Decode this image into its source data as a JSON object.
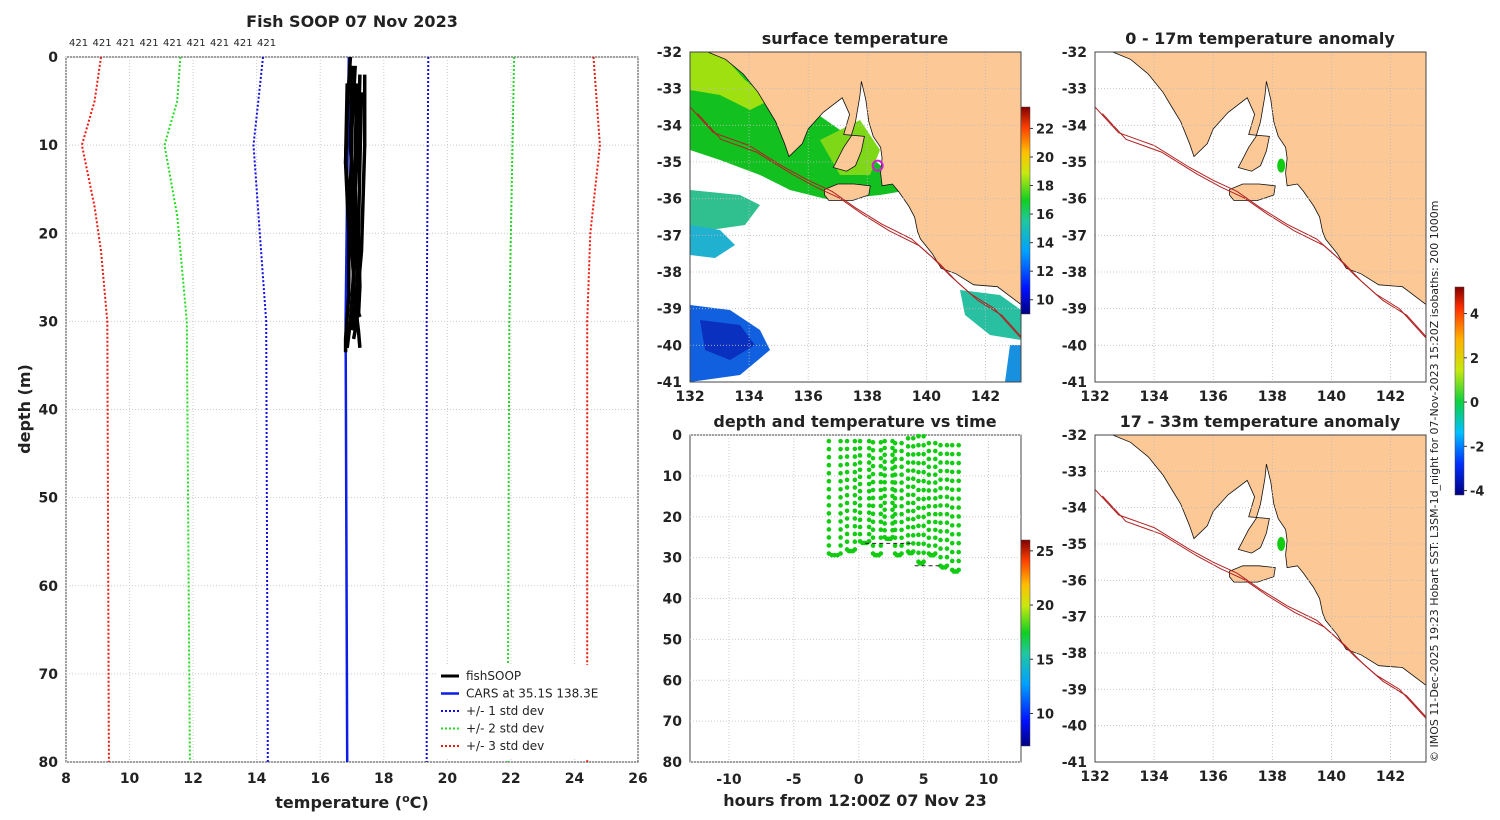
{
  "colors": {
    "land": "#fcc896",
    "mean": "#0a1ee6",
    "sd1": "#1010e0",
    "sd2": "#22dd22",
    "sd3": "#ee1a10",
    "obs": "#000000",
    "points": "#11cc11",
    "isobath": "#b22222"
  },
  "chart_data": [
    {
      "id": "profile",
      "type": "line",
      "title": "Fish SOOP 07 Nov 2023",
      "xlabel": "temperature (°C)",
      "xlabel_main": "temperature (",
      "xlabel_sup": "o",
      "xlabel_tail": "C)",
      "ylabel": "depth (m)",
      "xlim": [
        8,
        26
      ],
      "ylim": [
        80,
        0
      ],
      "xticks": [
        8,
        10,
        12,
        14,
        16,
        18,
        20,
        22,
        24,
        26
      ],
      "yticks": [
        0,
        10,
        20,
        30,
        40,
        50,
        60,
        70,
        80
      ],
      "top_annotations": [
        "421",
        "421",
        "421",
        "421",
        "421",
        "421",
        "421",
        "421",
        "421"
      ],
      "legend": [
        "fishSOOP",
        "CARS at 35.1S 138.3E",
        "+/- 1 std dev",
        "+/- 2 std dev",
        "+/- 3 std dev"
      ],
      "legend_location": "bottom-right",
      "series": [
        {
          "name": "CARS at 35.1S 138.3E",
          "style": "mean",
          "points": [
            [
              16.9,
              0
            ],
            [
              16.8,
              30
            ],
            [
              16.85,
              80
            ]
          ]
        },
        {
          "name": "+/- 1 std dev (low)",
          "style": "sd1",
          "points": [
            [
              14.2,
              0
            ],
            [
              14.05,
              5
            ],
            [
              13.9,
              10
            ],
            [
              14.1,
              20
            ],
            [
              14.3,
              30
            ],
            [
              14.35,
              80
            ]
          ]
        },
        {
          "name": "+/- 1 std dev (high)",
          "style": "sd1",
          "points": [
            [
              19.4,
              0
            ],
            [
              19.35,
              30
            ],
            [
              19.35,
              80
            ]
          ]
        },
        {
          "name": "+/- 2 std dev (low)",
          "style": "sd2",
          "points": [
            [
              11.6,
              0
            ],
            [
              11.5,
              5
            ],
            [
              11.1,
              10
            ],
            [
              11.5,
              18
            ],
            [
              11.8,
              30
            ],
            [
              11.9,
              80
            ]
          ]
        },
        {
          "name": "+/- 2 std dev (high)",
          "style": "sd2",
          "points": [
            [
              22.1,
              0
            ],
            [
              22.05,
              10
            ],
            [
              21.95,
              30
            ],
            [
              21.9,
              80
            ]
          ]
        },
        {
          "name": "+/- 3 std dev (low)",
          "style": "sd3",
          "points": [
            [
              9.1,
              0
            ],
            [
              8.9,
              5
            ],
            [
              8.5,
              10
            ],
            [
              8.9,
              17
            ],
            [
              9.1,
              22
            ],
            [
              9.3,
              30
            ],
            [
              9.35,
              80
            ]
          ]
        },
        {
          "name": "+/- 3 std dev (high)",
          "style": "sd3",
          "points": [
            [
              24.6,
              0
            ],
            [
              24.7,
              5
            ],
            [
              24.8,
              10
            ],
            [
              24.5,
              20
            ],
            [
              24.4,
              30
            ],
            [
              24.4,
              80
            ]
          ]
        },
        {
          "name": "fishSOOP",
          "style": "obs",
          "points": [
            [
              17.1,
              1
            ],
            [
              17.0,
              8
            ],
            [
              16.95,
              15
            ],
            [
              17.0,
              22
            ],
            [
              17.1,
              28
            ],
            [
              17.2,
              31
            ],
            [
              17.25,
              33
            ]
          ]
        },
        {
          "name": "fishSOOP",
          "style": "obs",
          "points": [
            [
              16.95,
              0
            ],
            [
              16.85,
              6
            ],
            [
              16.8,
              12
            ],
            [
              16.9,
              20
            ],
            [
              16.9,
              27
            ],
            [
              16.8,
              32
            ],
            [
              16.8,
              33.5
            ]
          ]
        },
        {
          "name": "fishSOOP",
          "style": "obs",
          "points": [
            [
              17.25,
              2
            ],
            [
              17.2,
              9
            ],
            [
              17.1,
              15
            ],
            [
              17.15,
              22
            ],
            [
              17.2,
              27
            ],
            [
              17.15,
              30
            ],
            [
              17.05,
              32
            ]
          ]
        },
        {
          "name": "fishSOOP",
          "style": "obs",
          "points": [
            [
              17.4,
              2
            ],
            [
              17.4,
              10
            ],
            [
              17.35,
              16
            ],
            [
              17.3,
              22
            ],
            [
              17.2,
              26
            ],
            [
              17.1,
              29
            ],
            [
              17.0,
              31
            ]
          ]
        },
        {
          "name": "fishSOOP",
          "style": "obs",
          "points": [
            [
              16.85,
              3
            ],
            [
              16.8,
              12
            ],
            [
              16.95,
              18
            ],
            [
              17.05,
              25
            ],
            [
              16.95,
              30
            ],
            [
              16.85,
              33
            ]
          ]
        },
        {
          "name": "fishSOOP",
          "style": "obs",
          "points": [
            [
              17.3,
              4
            ],
            [
              17.25,
              12
            ],
            [
              17.2,
              20
            ],
            [
              17.25,
              26
            ],
            [
              17.2,
              29.5
            ]
          ]
        },
        {
          "name": "fishSOOP",
          "style": "obs",
          "points": [
            [
              17.0,
              1
            ],
            [
              16.95,
              10
            ],
            [
              17.05,
              17
            ],
            [
              17.15,
              24
            ],
            [
              17.2,
              29
            ],
            [
              17.25,
              29.5
            ]
          ]
        },
        {
          "name": "fishSOOP",
          "style": "obs",
          "points": [
            [
              17.15,
              3
            ],
            [
              17.1,
              11
            ],
            [
              17.0,
              19
            ],
            [
              17.05,
              24
            ],
            [
              17.0,
              28
            ],
            [
              17.05,
              31
            ]
          ]
        }
      ]
    },
    {
      "id": "surface_map",
      "type": "heatmap",
      "title": "surface temperature",
      "xlim": [
        132,
        143.2
      ],
      "ylim": [
        -41,
        -32
      ],
      "xticks": [
        132,
        134,
        136,
        138,
        140,
        142
      ],
      "yticks": [
        -32,
        -33,
        -34,
        -35,
        -36,
        -37,
        -38,
        -39,
        -40,
        -41
      ],
      "colorbar": {
        "range": [
          9,
          23.5
        ],
        "ticks": [
          10,
          12,
          14,
          16,
          18,
          20,
          22
        ],
        "scheme": "jet"
      },
      "marker": {
        "lon": 138.35,
        "lat": -35.1
      }
    },
    {
      "id": "anom_top",
      "type": "heatmap",
      "title": "0 - 17m temperature anomaly",
      "xlim": [
        132,
        143.2
      ],
      "ylim": [
        -41,
        -32
      ],
      "xticks": [
        132,
        134,
        136,
        138,
        140,
        142
      ],
      "yticks": [
        -32,
        -33,
        -34,
        -35,
        -36,
        -37,
        -38,
        -39,
        -40,
        -41
      ],
      "marker": {
        "lon": 138.3,
        "lat": -35.1
      }
    },
    {
      "id": "anom_bottom",
      "type": "heatmap",
      "title": "17 - 33m temperature anomaly",
      "xlim": [
        132,
        143.2
      ],
      "ylim": [
        -41,
        -32
      ],
      "xticks": [
        132,
        134,
        136,
        138,
        140,
        142
      ],
      "yticks": [
        -32,
        -33,
        -34,
        -35,
        -36,
        -37,
        -38,
        -39,
        -40,
        -41
      ],
      "marker": {
        "lon": 138.3,
        "lat": -35.0
      },
      "colorbar": {
        "range": [
          -4.2,
          5.2
        ],
        "ticks": [
          -4,
          -2,
          0,
          2,
          4
        ],
        "scheme": "jet"
      }
    },
    {
      "id": "depth_time",
      "type": "scatter",
      "title": "depth and temperature vs time",
      "xlabel": "hours from 12:00Z 07 Nov 23",
      "xlim": [
        -13,
        12.5
      ],
      "ylim": [
        80,
        0
      ],
      "xticks": [
        -10,
        -5,
        0,
        5,
        10
      ],
      "yticks": [
        0,
        10,
        20,
        30,
        40,
        50,
        60,
        70,
        80
      ],
      "colorbar": {
        "range": [
          7,
          26
        ],
        "ticks": [
          10,
          15,
          20,
          25
        ],
        "scheme": "jet"
      },
      "casts": [
        {
          "t": -2.3,
          "tb": -1.4,
          "surf": 1.5,
          "bottom": 29
        },
        {
          "t": -0.9,
          "tb": -0.3,
          "surf": 1.5,
          "bottom": 28
        },
        {
          "t": 0.1,
          "tb": 0.8,
          "surf": 1.5,
          "bottom": 26
        },
        {
          "t": 1.1,
          "tb": 1.7,
          "surf": 1.8,
          "bottom": 29
        },
        {
          "t": 2.0,
          "tb": 2.6,
          "surf": 1.5,
          "bottom": 25
        },
        {
          "t": 2.8,
          "tb": 3.3,
          "surf": 2.0,
          "bottom": 29
        },
        {
          "t": 3.8,
          "tb": 4.2,
          "surf": 0.8,
          "bottom": 28.5
        },
        {
          "t": 4.6,
          "tb": 5.0,
          "surf": 0.3,
          "bottom": 31
        },
        {
          "t": 5.4,
          "tb": 5.9,
          "surf": 2.0,
          "bottom": 29
        },
        {
          "t": 6.3,
          "tb": 6.8,
          "surf": 2.5,
          "bottom": 32
        },
        {
          "t": 7.2,
          "tb": 7.7,
          "surf": 2.5,
          "bottom": 33
        }
      ]
    }
  ],
  "side_caption": "© IMOS 11-Dec-2025 19:23 Hobart SST: L3SM-1d_night for 07-Nov-2023 15:20Z isobaths: 200  1000m"
}
